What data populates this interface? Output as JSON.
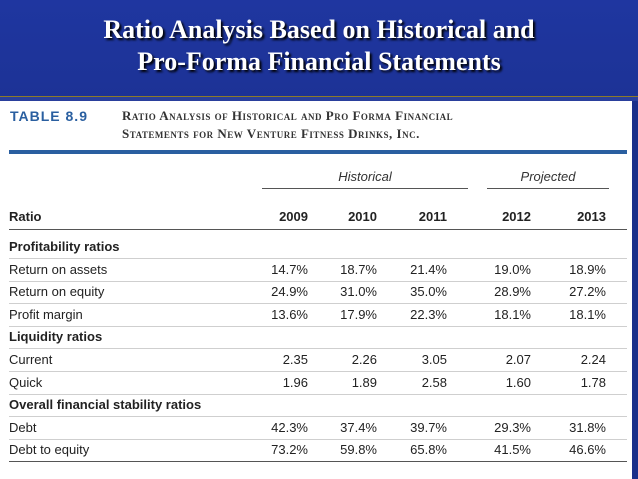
{
  "slide": {
    "title_line1": "Ratio Analysis Based on Historical and",
    "title_line2": "Pro-Forma Financial Statements"
  },
  "table": {
    "label": "TABLE 8.9",
    "caption_line1": "Ratio Analysis of Historical and Pro Forma Financial",
    "caption_line2": "Statements for New Venture Fitness Drinks, Inc.",
    "group_historical": "Historical",
    "group_projected": "Projected",
    "ratio_header": "Ratio",
    "years": [
      "2009",
      "2010",
      "2011",
      "2012",
      "2013"
    ],
    "rows": [
      {
        "label": "Profitability ratios",
        "section": true,
        "values": []
      },
      {
        "label": "Return on assets",
        "section": false,
        "values": [
          "14.7%",
          "18.7%",
          "21.4%",
          "19.0%",
          "18.9%"
        ]
      },
      {
        "label": "Return on equity",
        "section": false,
        "values": [
          "24.9%",
          "31.0%",
          "35.0%",
          "28.9%",
          "27.2%"
        ]
      },
      {
        "label": "Profit margin",
        "section": false,
        "values": [
          "13.6%",
          "17.9%",
          "22.3%",
          "18.1%",
          "18.1%"
        ]
      },
      {
        "label": "Liquidity ratios",
        "section": true,
        "values": []
      },
      {
        "label": "Current",
        "section": false,
        "values": [
          "2.35",
          "2.26",
          "3.05",
          "2.07",
          "2.24"
        ]
      },
      {
        "label": "Quick",
        "section": false,
        "values": [
          "1.96",
          "1.89",
          "2.58",
          "1.60",
          "1.78"
        ]
      },
      {
        "label": "Overall financial stability ratios",
        "section": true,
        "values": []
      },
      {
        "label": "Debt",
        "section": false,
        "values": [
          "42.3%",
          "37.4%",
          "39.7%",
          "29.3%",
          "31.8%"
        ]
      },
      {
        "label": "Debt to equity",
        "section": false,
        "values": [
          "73.2%",
          "59.8%",
          "65.8%",
          "41.5%",
          "46.6%"
        ]
      }
    ]
  },
  "colors": {
    "slide_bg": "#1a2f8a",
    "table_accent": "#2a5fa0"
  }
}
